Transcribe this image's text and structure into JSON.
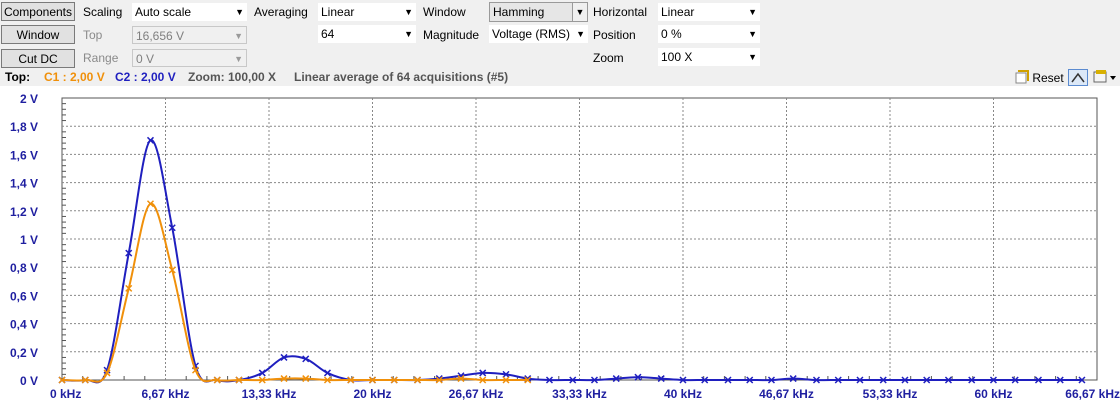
{
  "toolbar": {
    "components_btn": "Components",
    "window_btn": "Window",
    "cutdc_btn": "Cut DC",
    "scaling_label": "Scaling",
    "scaling_value": "Auto scale",
    "top_label": "Top",
    "top_value": "16,656 V",
    "range_label": "Range",
    "range_value": "0 V",
    "averaging_label": "Averaging",
    "averaging_value": "Linear",
    "averaging_count": "64",
    "window_label": "Window",
    "window_value": "Hamming",
    "magnitude_label": "Magnitude",
    "magnitude_value": "Voltage (RMS)",
    "horizontal_label": "Horizontal",
    "horizontal_value": "Linear",
    "position_label": "Position",
    "position_value": "0 %",
    "zoom_label": "Zoom",
    "zoom_value": "100 X"
  },
  "status": {
    "top_label": "Top:",
    "c1": "C1 : 2,00 V",
    "c2": "C2 : 2,00 V",
    "zoom": "Zoom: 100,00 X",
    "average": "Linear average of 64 acquisitions (#5)",
    "reset": "Reset"
  },
  "colors": {
    "c1": "#f0900a",
    "c2": "#1f1fbf",
    "axis_text": "#1f1fa0"
  },
  "icons": [
    "reset-icon",
    "peak-icon",
    "settings-icon"
  ],
  "chart_data": {
    "type": "line",
    "xlim": [
      0,
      66.67
    ],
    "ylim": [
      0,
      2
    ],
    "grid": true,
    "xticks": [
      "0 kHz",
      "6,67 kHz",
      "13,33 kHz",
      "20 kHz",
      "26,67 kHz",
      "33,33 kHz",
      "40 kHz",
      "46,67 kHz",
      "53,33 kHz",
      "60 kHz",
      "66,67 kHz"
    ],
    "yticks": [
      "0 V",
      "0,2 V",
      "0,4 V",
      "0,6 V",
      "0,8 V",
      "1 V",
      "1,2 V",
      "1,4 V",
      "1,6 V",
      "1,8 V",
      "2 V"
    ],
    "series": [
      {
        "name": "C2",
        "x": [
          0,
          1.5,
          2.9,
          4.3,
          5.7,
          7.1,
          8.6,
          10.0,
          11.4,
          12.9,
          14.3,
          15.7,
          17.1,
          18.6,
          20.0,
          21.4,
          22.9,
          24.3,
          25.7,
          27.1,
          28.6,
          30.0,
          31.4,
          32.9,
          34.3,
          35.7,
          37.1,
          38.6,
          40.0,
          41.4,
          42.9,
          44.3,
          45.7,
          47.1,
          48.6,
          50.0,
          51.4,
          52.9,
          54.3,
          55.7,
          57.1,
          58.6,
          60.0,
          61.4,
          62.9,
          64.3,
          65.7
        ],
        "y": [
          0,
          0,
          0.07,
          0.9,
          1.7,
          1.08,
          0.1,
          0,
          0,
          0.05,
          0.16,
          0.15,
          0.05,
          0,
          0,
          0,
          0,
          0.01,
          0.03,
          0.05,
          0.04,
          0.01,
          0,
          0,
          0,
          0.01,
          0.02,
          0.01,
          0,
          0,
          0,
          0,
          0,
          0.01,
          0,
          0,
          0,
          0,
          0,
          0,
          0,
          0,
          0,
          0,
          0,
          0,
          0
        ]
      },
      {
        "name": "C1",
        "x": [
          0,
          1.5,
          2.9,
          4.3,
          5.7,
          7.1,
          8.6,
          10.0,
          11.4,
          12.9,
          14.3,
          15.7,
          17.1,
          18.6,
          20.0,
          21.4,
          22.9,
          24.3,
          25.7,
          27.1,
          28.6,
          30.0
        ],
        "y": [
          0,
          0,
          0.05,
          0.65,
          1.25,
          0.78,
          0.07,
          0,
          0,
          0,
          0.01,
          0.01,
          0,
          0,
          0,
          0,
          0,
          0,
          0.01,
          0,
          0,
          0
        ]
      }
    ]
  }
}
